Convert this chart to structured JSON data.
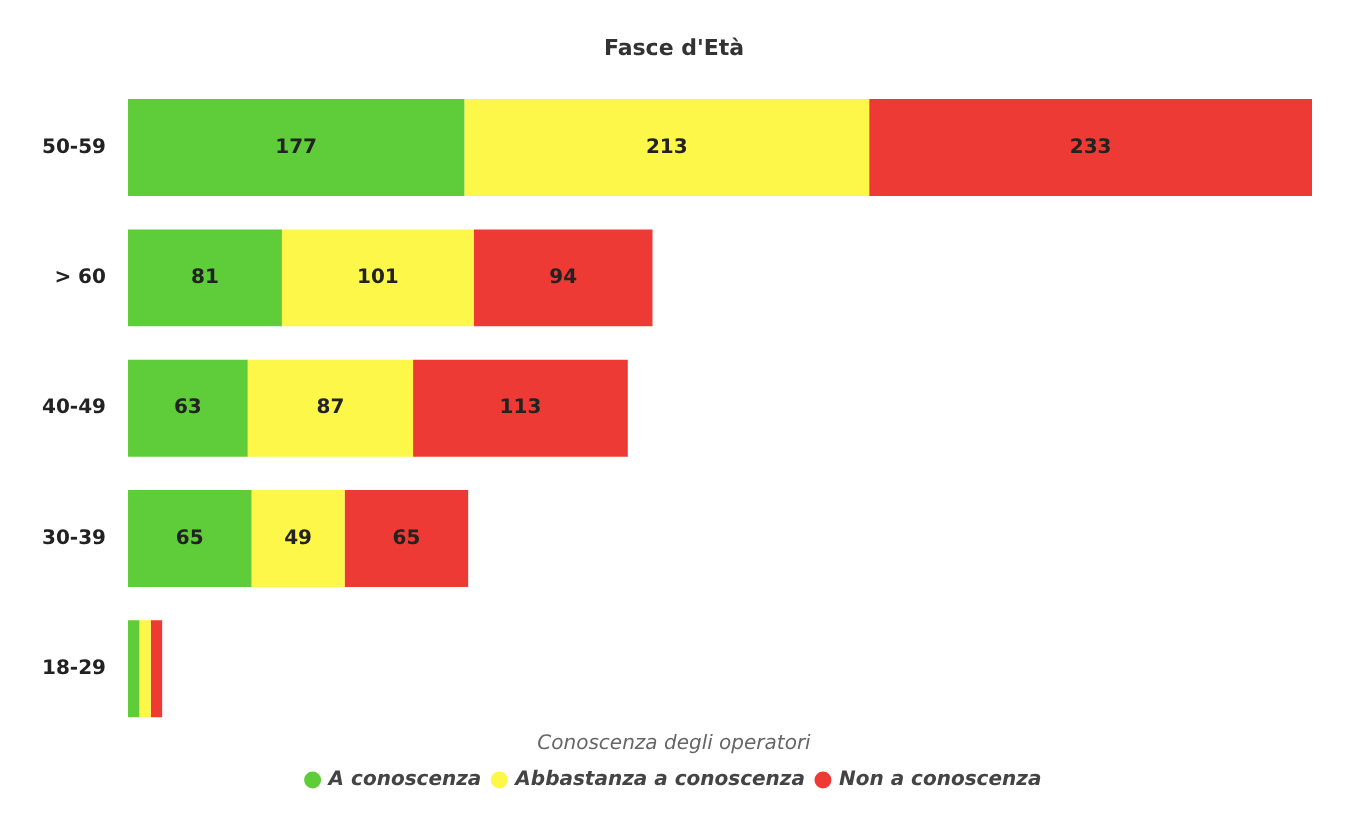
{
  "chart_data": {
    "type": "bar",
    "orientation": "horizontal",
    "stacked": true,
    "title": "Fasce d'Età",
    "legend_title": "Conoscenza degli operatori",
    "legend": "bottom",
    "grid": false,
    "categories": [
      "50-59",
      "> 60",
      "40-49",
      "30-39",
      "18-29"
    ],
    "series": [
      {
        "name": "A conoscenza",
        "color": "#5fcc3a",
        "values": [
          177,
          81,
          63,
          65,
          6
        ],
        "value_labels": [
          "177",
          "81",
          "63",
          "65",
          null
        ]
      },
      {
        "name": "Abbastanza a conoscenza",
        "color": "#fdf74a",
        "values": [
          213,
          101,
          87,
          49,
          6
        ],
        "value_labels": [
          "213",
          "101",
          "87",
          "49",
          null
        ]
      },
      {
        "name": "Non a conoscenza",
        "color": "#ee3a35",
        "values": [
          233,
          94,
          113,
          65,
          6
        ],
        "value_labels": [
          "233",
          "94",
          "113",
          "65",
          null
        ]
      }
    ]
  }
}
